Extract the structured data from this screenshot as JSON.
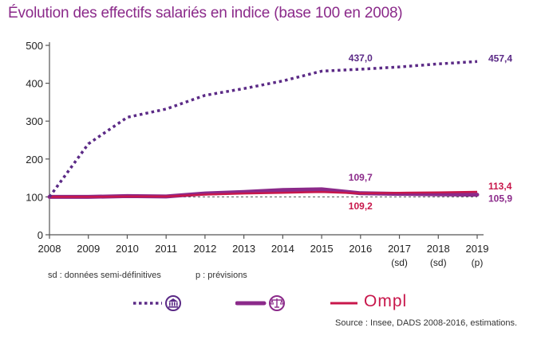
{
  "chart_data": {
    "type": "line",
    "title": "Évolution des effectifs salariés en indice (base 100 en 2008)",
    "x": [
      2008,
      2009,
      2010,
      2011,
      2012,
      2013,
      2014,
      2015,
      2016,
      2017,
      2018,
      2019
    ],
    "x_tick_labels": [
      "2008",
      "2009",
      "2010",
      "2011",
      "2012",
      "2013",
      "2014",
      "2015",
      "2016",
      "2017",
      "2018",
      "2019"
    ],
    "x_tick_sublabels": [
      "",
      "",
      "",
      "",
      "",
      "",
      "",
      "",
      "",
      "(sd)",
      "(sd)",
      "(p)"
    ],
    "y_ticks": [
      0,
      100,
      200,
      300,
      400,
      500
    ],
    "ylim": [
      0,
      500
    ],
    "series": [
      {
        "legend_icon": "bank-icon",
        "color": "#5b2a86",
        "style": "dotted",
        "values": [
          100,
          240,
          310,
          332,
          368,
          386,
          406,
          432,
          437.0,
          443,
          451,
          457.4
        ]
      },
      {
        "legend_icon": "scales-of-justice-icon",
        "color": "#8b2a8a",
        "style": "solid-thick",
        "values": [
          100,
          100,
          102,
          101,
          109,
          113,
          118,
          120,
          109.7,
          108,
          107,
          105.9
        ]
      },
      {
        "legend_icon": "ompl-logo",
        "color": "#c8174b",
        "style": "solid",
        "values": [
          100,
          100,
          101,
          101,
          106,
          109,
          111,
          113,
          109.2,
          111,
          112,
          113.4
        ]
      }
    ],
    "reference_line": {
      "y": 100,
      "style": "dashed"
    },
    "data_labels": [
      {
        "text": "437,0",
        "series": 0,
        "x": 2016
      },
      {
        "text": "457,4",
        "series": 0,
        "x": 2019
      },
      {
        "text": "109,7",
        "series": 1,
        "x": 2016
      },
      {
        "text": "109,2",
        "series": 2,
        "x": 2016
      },
      {
        "text": "113,4",
        "series": 2,
        "x": 2019
      },
      {
        "text": "105,9",
        "series": 1,
        "x": 2019
      }
    ],
    "grid": false,
    "legend_position": "bottom"
  },
  "notes": {
    "sd": "sd : données semi-définitives",
    "p": "p : prévisions"
  },
  "legend": {
    "ompl_text": "Ompl"
  },
  "source": "Source : Insee, DADS 2008-2016, estimations."
}
